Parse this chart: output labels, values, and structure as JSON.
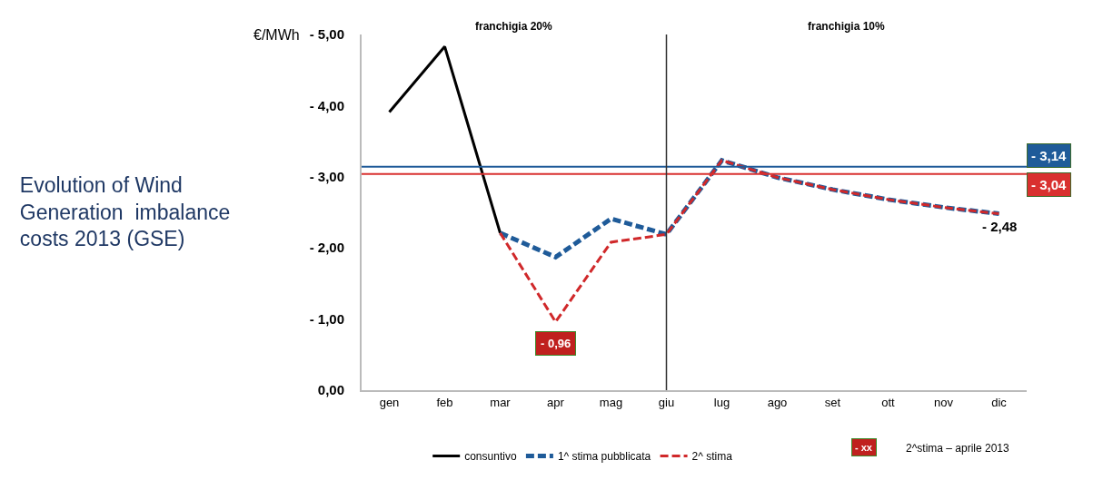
{
  "chart_data": {
    "type": "line",
    "title": "Evolution of Wind Generation  imbalance costs 2013 (GSE)",
    "ylabel": "€/MWh",
    "categories": [
      "gen",
      "feb",
      "mar",
      "apr",
      "mag",
      "giu",
      "lug",
      "ago",
      "set",
      "ott",
      "nov",
      "dic"
    ],
    "series": [
      {
        "name": "consuntivo",
        "color": "#000000",
        "line_style": "solid",
        "values": [
          -3.91,
          -4.83,
          -2.21,
          null,
          null,
          null,
          null,
          null,
          null,
          null,
          null,
          null
        ]
      },
      {
        "name": "1^ stima pubblicata",
        "color": "#1f5b99",
        "line_style": "dashed",
        "values": [
          null,
          null,
          -2.21,
          -1.87,
          -2.41,
          -2.19,
          -3.23,
          -2.99,
          -2.82,
          -2.68,
          -2.57,
          -2.48
        ]
      },
      {
        "name": "2^ stima",
        "color": "#d0282a",
        "line_style": "dashed",
        "values": [
          null,
          null,
          -2.21,
          -0.96,
          -2.08,
          -2.19,
          -3.23,
          -2.99,
          -2.82,
          -2.68,
          -2.57,
          -2.48
        ]
      }
    ],
    "ylim": [
      0,
      -5
    ],
    "yticks": [
      {
        "value": 0,
        "label": "0,00"
      },
      {
        "value": -1,
        "label": "- 1,00"
      },
      {
        "value": -2,
        "label": "- 2,00"
      },
      {
        "value": -3,
        "label": "- 3,00"
      },
      {
        "value": -4,
        "label": "- 4,00"
      },
      {
        "value": -5,
        "label": "- 5,00"
      }
    ],
    "ref_lines": [
      {
        "axis": "y",
        "value": -3.14,
        "label": "- 3,14",
        "color": "#1f5b99"
      },
      {
        "axis": "y",
        "value": -3.04,
        "label": "- 3,04",
        "color": "#d9302f"
      },
      {
        "axis": "x",
        "value": "giu",
        "color": "#333333"
      }
    ],
    "annotations": [
      "franchigia 20%",
      "franchigia 10%",
      {
        "text": "- 0,96",
        "x": "apr",
        "y": -0.96
      },
      {
        "text": "- 2,48",
        "x": "dic",
        "y": -2.48
      },
      "- xx",
      "2^stima – aprile 2013"
    ],
    "grid": false,
    "legend": "bottom"
  }
}
